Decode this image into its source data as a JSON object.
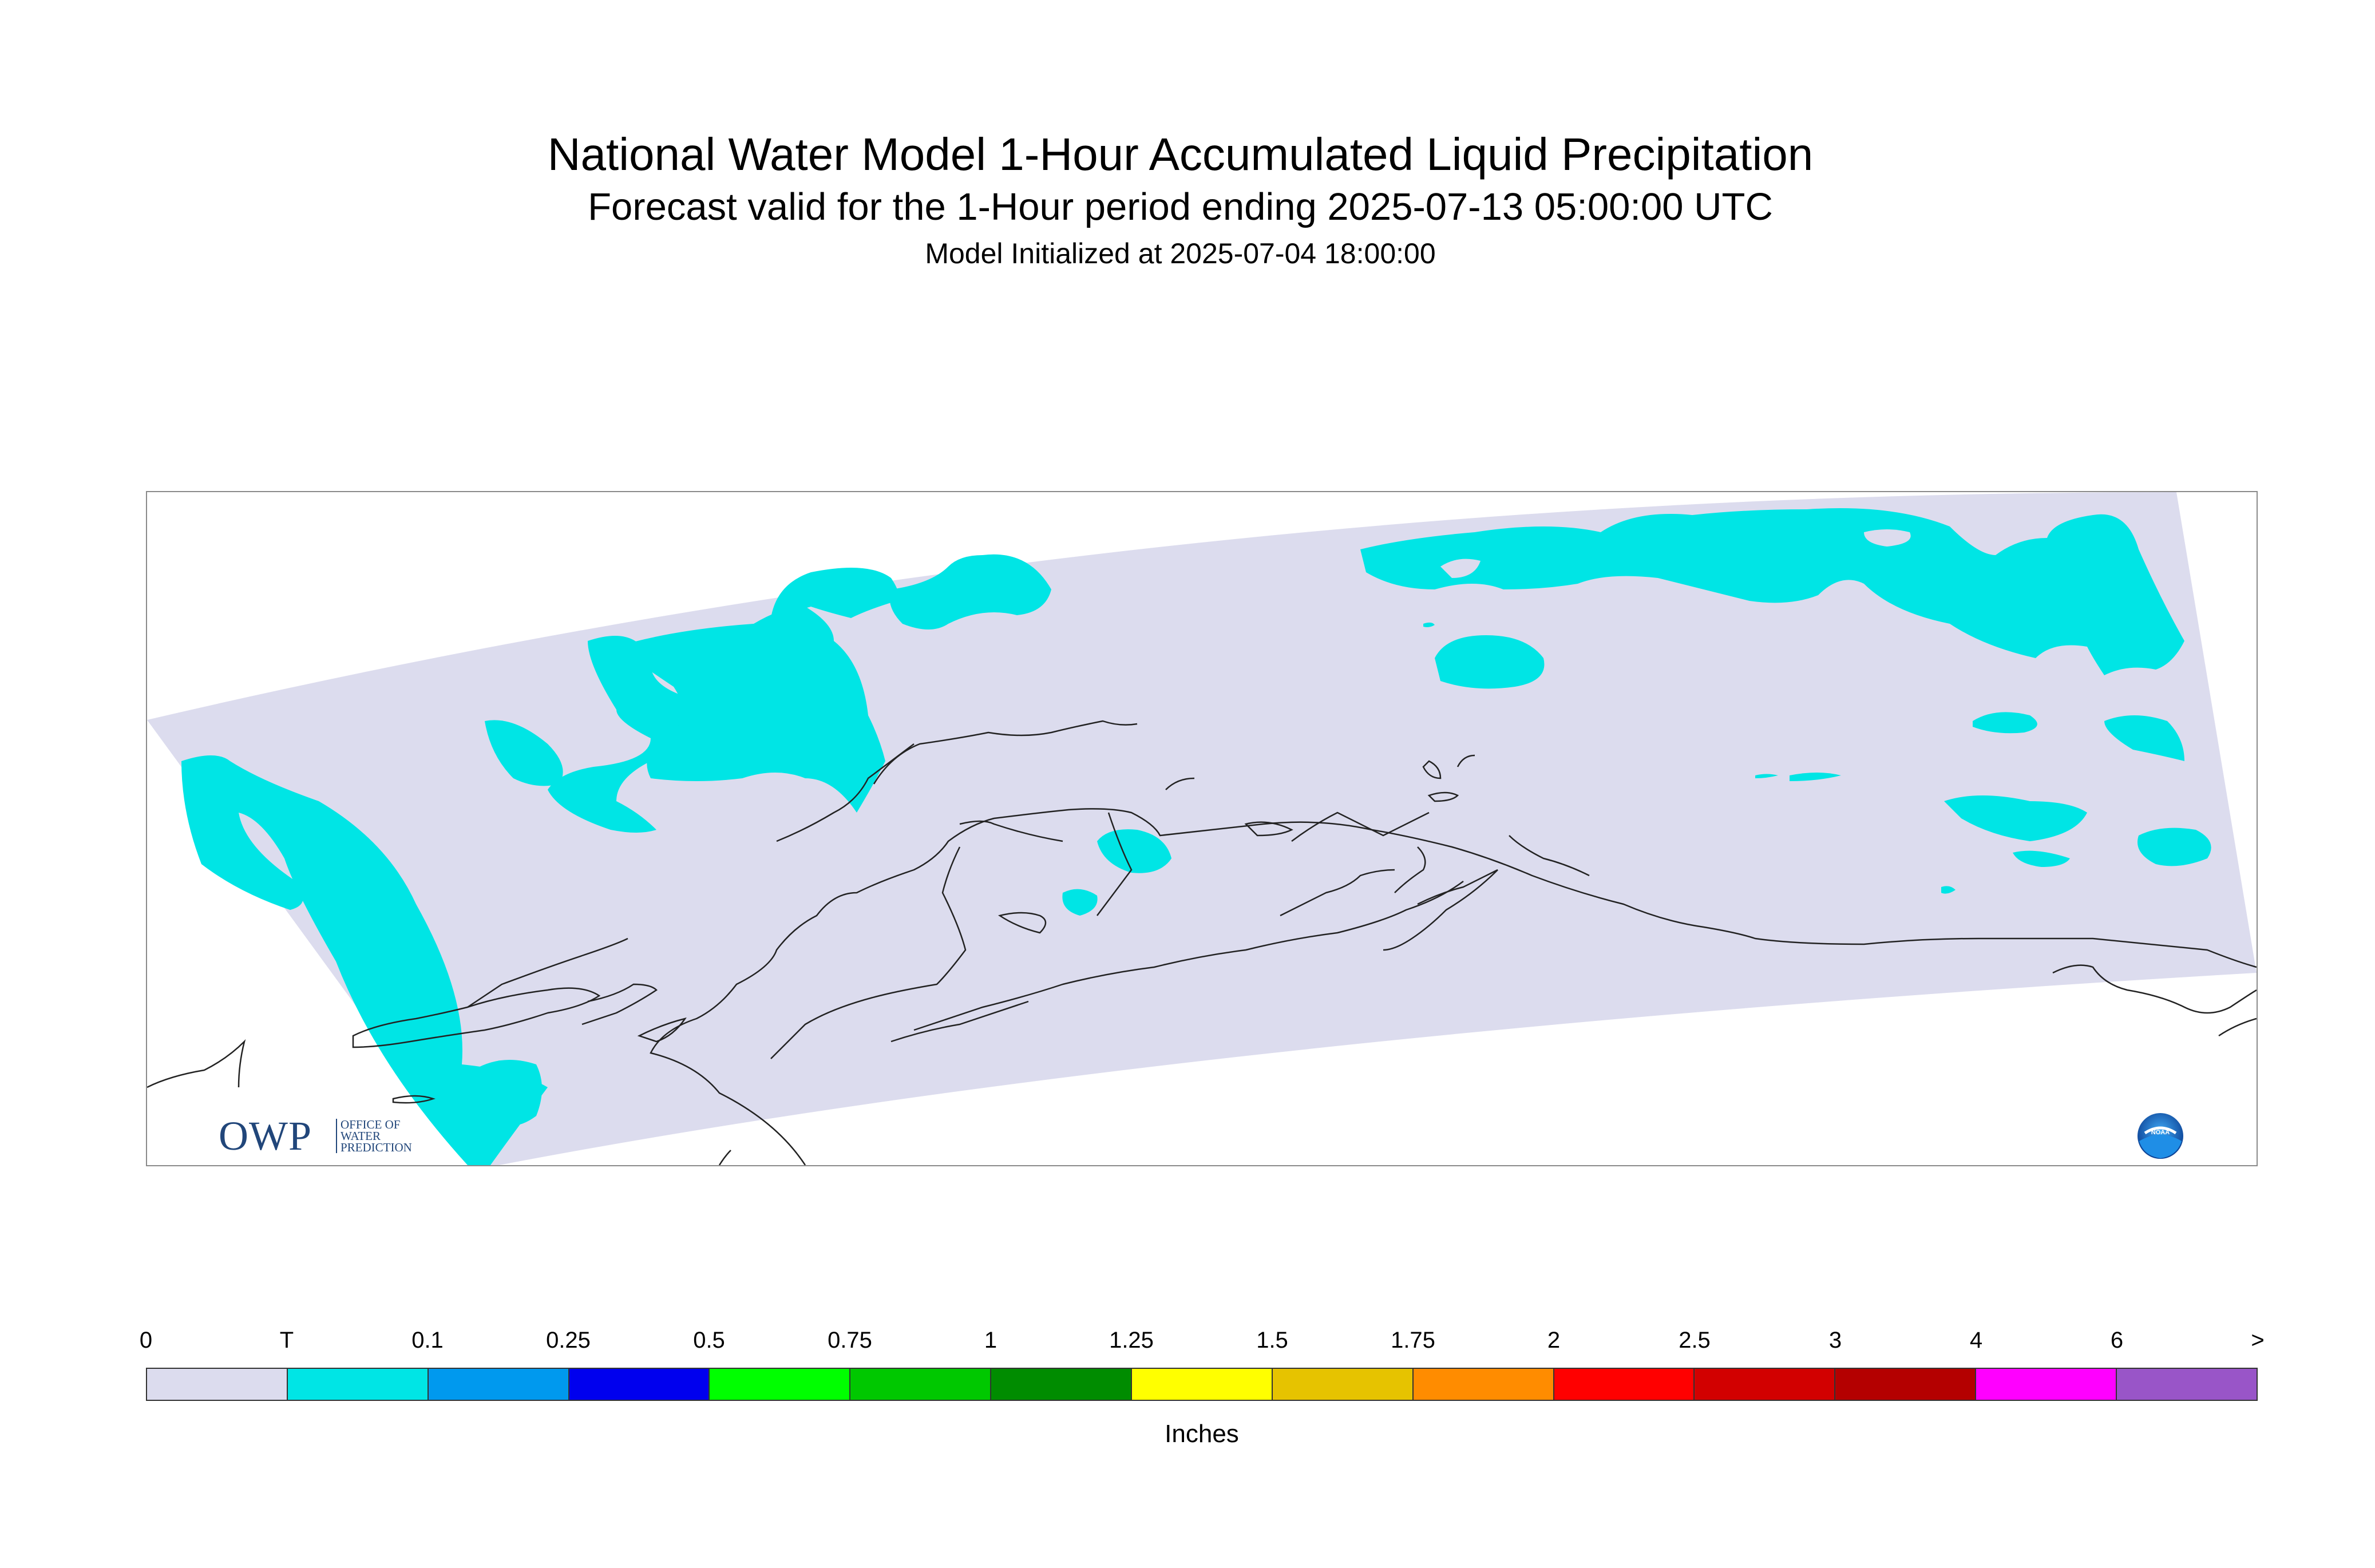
{
  "title": {
    "main": "National Water Model 1-Hour Accumulated Liquid Precipitation",
    "subtitle": "Forecast valid for the 1-Hour period ending 2025-07-13 05:00:00 UTC",
    "initialized": "Model Initialized at 2025-07-04 18:00:00"
  },
  "map": {
    "region": "Alaska",
    "background_color": "#dcdcee",
    "precip_color": "#00e5e5",
    "coastline_color": "#222222"
  },
  "logos": {
    "owp_letters": "OWP",
    "owp_line1": "OFFICE OF",
    "owp_line2": "WATER",
    "owp_line3": "PREDICTION",
    "noaa": "NOAA"
  },
  "legend": {
    "units": "Inches",
    "labels": [
      "0",
      "T",
      "0.1",
      "0.25",
      "0.5",
      "0.75",
      "1",
      "1.25",
      "1.5",
      "1.75",
      "2",
      "2.5",
      "3",
      "4",
      "6",
      ">"
    ],
    "colors": [
      "#dcdcee",
      "#00e5e5",
      "#0099ee",
      "#0000ee",
      "#00ff00",
      "#00c800",
      "#008c00",
      "#ffff00",
      "#e6c300",
      "#ff8c00",
      "#ff0000",
      "#d20000",
      "#b40000",
      "#ff00ff",
      "#9955c8"
    ]
  }
}
